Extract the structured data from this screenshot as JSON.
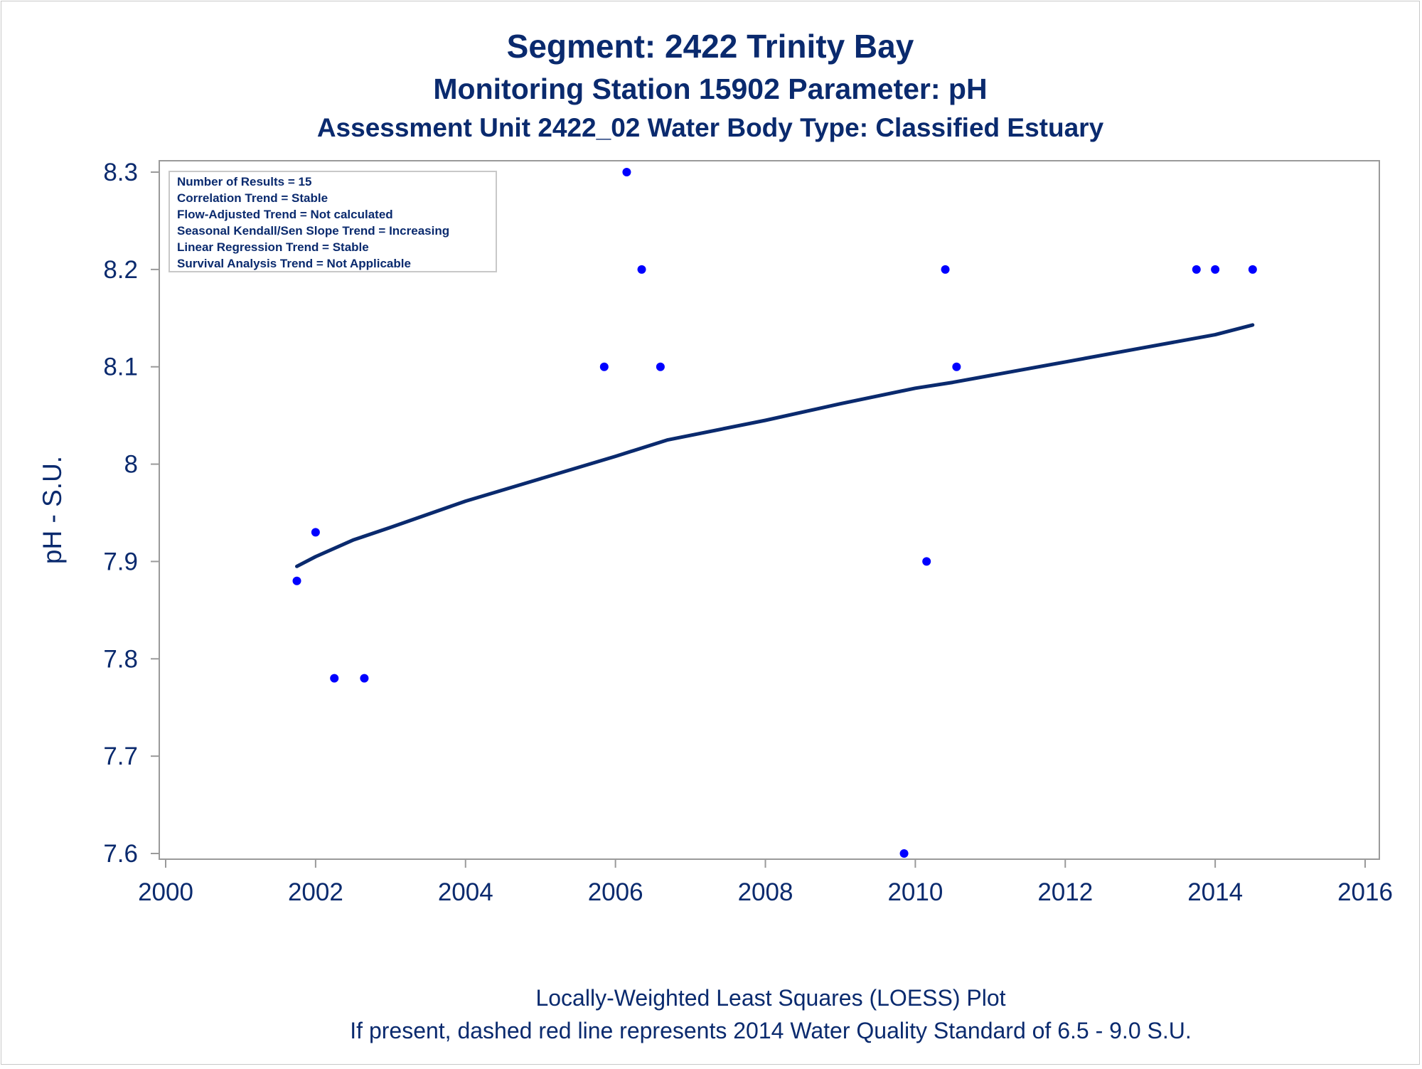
{
  "titles": {
    "line1": "Segment: 2422  Trinity Bay",
    "line2": "Monitoring Station 15902 Parameter: pH",
    "line3": "Assessment Unit 2422_02   Water Body Type: Classified Estuary"
  },
  "stats_box": [
    "Number of Results = 15",
    "Correlation Trend = Stable",
    "Flow-Adjusted Trend = Not calculated",
    "Seasonal Kendall/Sen Slope Trend = Increasing",
    "Linear Regression Trend = Stable",
    "Survival Analysis Trend = Not Applicable"
  ],
  "footnotes": [
    "Locally-Weighted Least Squares (LOESS) Plot",
    "If present, dashed red line represents 2014 Water Quality Standard of 6.5 - 9.0 S.U."
  ],
  "colors": {
    "points": "#0000ff",
    "loess": "#0a2a6e",
    "text": "#0a2a6e",
    "frame": "#9a9a9a"
  },
  "chart_data": {
    "type": "scatter",
    "title": "Segment: 2422  Trinity Bay",
    "xlabel": "",
    "ylabel": "pH - S.U.",
    "xlim": [
      2000,
      2016
    ],
    "ylim": [
      7.6,
      8.3
    ],
    "x_ticks": [
      2000,
      2002,
      2004,
      2006,
      2008,
      2010,
      2012,
      2014,
      2016
    ],
    "y_ticks": [
      7.6,
      7.7,
      7.8,
      7.9,
      8,
      8.1,
      8.2,
      8.3
    ],
    "grid": false,
    "points": [
      {
        "x": 2001.75,
        "y": 7.88
      },
      {
        "x": 2002.0,
        "y": 7.93
      },
      {
        "x": 2002.25,
        "y": 7.78
      },
      {
        "x": 2002.65,
        "y": 7.78
      },
      {
        "x": 2005.85,
        "y": 8.1
      },
      {
        "x": 2006.15,
        "y": 8.3
      },
      {
        "x": 2006.35,
        "y": 8.2
      },
      {
        "x": 2006.6,
        "y": 8.1
      },
      {
        "x": 2009.85,
        "y": 7.6
      },
      {
        "x": 2010.15,
        "y": 7.9
      },
      {
        "x": 2010.4,
        "y": 8.2
      },
      {
        "x": 2010.55,
        "y": 8.1
      },
      {
        "x": 2013.75,
        "y": 8.2
      },
      {
        "x": 2014.0,
        "y": 8.2
      },
      {
        "x": 2014.5,
        "y": 8.2
      }
    ],
    "loess": [
      {
        "x": 2001.75,
        "y": 7.895
      },
      {
        "x": 2002.0,
        "y": 7.905
      },
      {
        "x": 2002.5,
        "y": 7.922
      },
      {
        "x": 2003.0,
        "y": 7.935
      },
      {
        "x": 2004.0,
        "y": 7.962
      },
      {
        "x": 2005.0,
        "y": 7.985
      },
      {
        "x": 2006.0,
        "y": 8.008
      },
      {
        "x": 2006.7,
        "y": 8.025
      },
      {
        "x": 2008.0,
        "y": 8.045
      },
      {
        "x": 2009.0,
        "y": 8.062
      },
      {
        "x": 2010.0,
        "y": 8.078
      },
      {
        "x": 2010.5,
        "y": 8.084
      },
      {
        "x": 2011.0,
        "y": 8.091
      },
      {
        "x": 2012.0,
        "y": 8.105
      },
      {
        "x": 2013.0,
        "y": 8.119
      },
      {
        "x": 2014.0,
        "y": 8.133
      },
      {
        "x": 2014.5,
        "y": 8.143
      }
    ]
  }
}
